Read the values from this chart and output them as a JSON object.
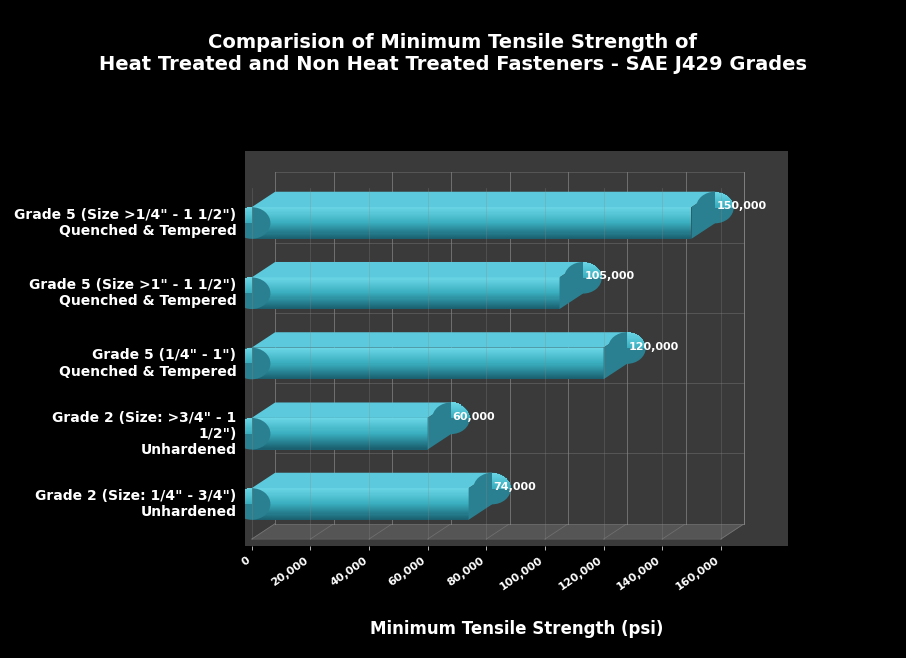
{
  "title_line1": "Comparision of Minimum Tensile Strength of",
  "title_line2": "Heat Treated and Non Heat Treated Fasteners - SAE J429 Grades",
  "xlabel": "Minimum Tensile Strength (psi)",
  "categories": [
    "Grade 2 (Size: 1/4\" - 3/4\")\nUnhardened",
    "Grade 2 (Size: >3/4\" - 1\n1/2\")\nUnhardened",
    "Grade 5 (1/4\" - 1\")\nQuenched & Tempered",
    "Grade 5 (Size >1\" - 1 1/2\")\nQuenched & Tempered",
    "Grade 5 (Size >1/4\" - 1 1/2\")\nQuenched & Tempered"
  ],
  "values": [
    74000,
    60000,
    120000,
    105000,
    150000
  ],
  "value_labels": [
    "74,000",
    "60,000",
    "120,000",
    "105,000",
    "150,000"
  ],
  "bar_color_light": "#6DD8E8",
  "bar_color_mid": "#3AAFBF",
  "bar_color_dark": "#1A6070",
  "bar_color_end_light": "#5CCADC",
  "bar_color_end_dark": "#2A8090",
  "background_color": "#000000",
  "plot_bg_color": "#3a3a3a",
  "grid_color": "#888888",
  "text_color": "#ffffff",
  "xlim": [
    0,
    160000
  ],
  "xticks": [
    0,
    20000,
    40000,
    60000,
    80000,
    100000,
    120000,
    140000,
    160000
  ],
  "xtick_labels": [
    "0",
    "20,000",
    "40,000",
    "60,000",
    "80,000",
    "100,000",
    "120,000",
    "140,000",
    "160,000"
  ],
  "title_fontsize": 14,
  "label_fontsize": 10,
  "tick_fontsize": 8,
  "value_fontsize": 8
}
